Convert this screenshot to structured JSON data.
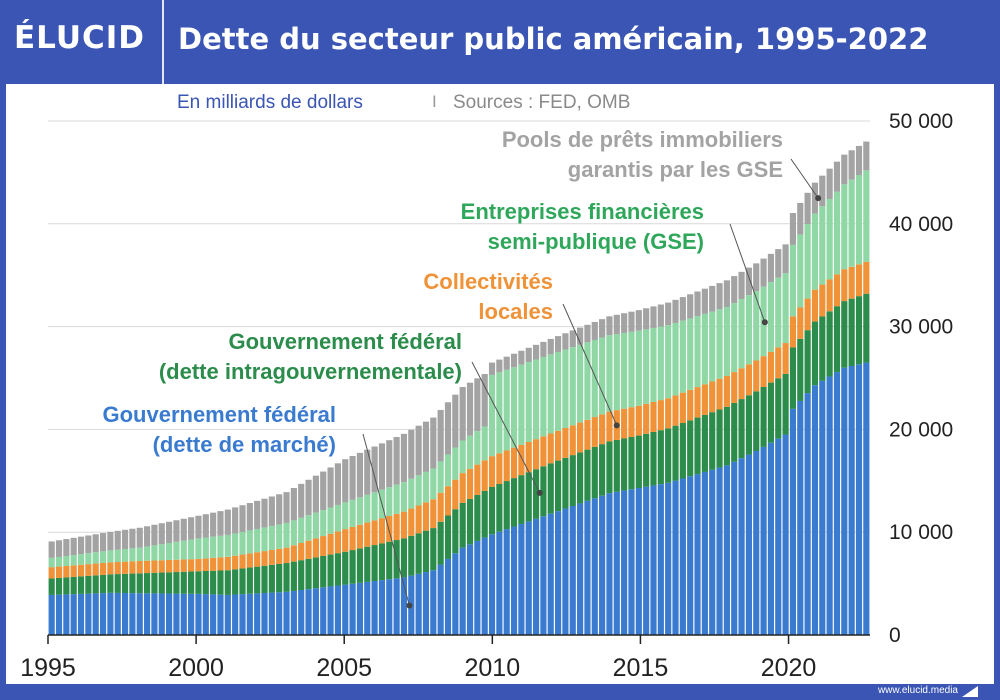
{
  "brand": {
    "logo": "ÉLUCID",
    "site": "www.elucid.media"
  },
  "header": {
    "title": "Dette du secteur public américain, 1995-2022"
  },
  "subtitle": {
    "units": "En milliards de dollars",
    "separator": "I",
    "sources": "Sources : FED, OMB"
  },
  "colors": {
    "market": "#3a7bd0",
    "intragov": "#2b8c4b",
    "local": "#ef9238",
    "gse": "#8fd8a6",
    "pools": "#a3a3a3",
    "brand": "#3a55b4"
  },
  "chart_data": {
    "type": "bar",
    "stacked": true,
    "x_start_year": 1995,
    "x_end_year": 2022.75,
    "x_tick_labels": [
      "1995",
      "2000",
      "2005",
      "2010",
      "2015",
      "2020"
    ],
    "ylim": [
      0,
      50000
    ],
    "y_tick_labels": [
      "0",
      "10 000",
      "20 000",
      "30 000",
      "40 000",
      "50 000"
    ],
    "series_keys": [
      "market",
      "intragov",
      "local",
      "gse",
      "pools"
    ],
    "series_names": [
      "Gouvernement fédéral (dette de marché)",
      "Gouvernement fédéral (dette intragouvernementale)",
      "Collectivités locales",
      "Entreprises financières semi-publique (GSE)",
      "Pools de prêts immobiliers garantis par les GSE"
    ],
    "keypoints": {
      "market": [
        [
          1995,
          3900
        ],
        [
          1997,
          4100
        ],
        [
          2000,
          4000
        ],
        [
          2001,
          3900
        ],
        [
          2003,
          4200
        ],
        [
          2005,
          4900
        ],
        [
          2007,
          5600
        ],
        [
          2008,
          6300
        ],
        [
          2009,
          8500
        ],
        [
          2010,
          9800
        ],
        [
          2012,
          11800
        ],
        [
          2014,
          13800
        ],
        [
          2016,
          14800
        ],
        [
          2018,
          16500
        ],
        [
          2019,
          17900
        ],
        [
          2020,
          19500
        ],
        [
          2020.25,
          22000
        ],
        [
          2021,
          24300
        ],
        [
          2022,
          26000
        ],
        [
          2022.75,
          26500
        ]
      ],
      "intragov": [
        [
          1995,
          1600
        ],
        [
          1997,
          1800
        ],
        [
          2000,
          2200
        ],
        [
          2002,
          2600
        ],
        [
          2005,
          3200
        ],
        [
          2008,
          4100
        ],
        [
          2010,
          4600
        ],
        [
          2012,
          4900
        ],
        [
          2015,
          5100
        ],
        [
          2018,
          5700
        ],
        [
          2020,
          5900
        ],
        [
          2022.75,
          6700
        ]
      ],
      "local": [
        [
          1995,
          1100
        ],
        [
          1998,
          1200
        ],
        [
          2000,
          1200
        ],
        [
          2003,
          1500
        ],
        [
          2005,
          2200
        ],
        [
          2008,
          2800
        ],
        [
          2010,
          3000
        ],
        [
          2012,
          2900
        ],
        [
          2015,
          2900
        ],
        [
          2018,
          3000
        ],
        [
          2020,
          3000
        ],
        [
          2021,
          3100
        ],
        [
          2022.75,
          3100
        ]
      ],
      "gse": [
        [
          1995,
          900
        ],
        [
          1998,
          1300
        ],
        [
          2000,
          2000
        ],
        [
          2003,
          2400
        ],
        [
          2005,
          2600
        ],
        [
          2008,
          3000
        ],
        [
          2009.75,
          3300
        ],
        [
          2010,
          7900
        ],
        [
          2012,
          7700
        ],
        [
          2015,
          7300
        ],
        [
          2018,
          6700
        ],
        [
          2020,
          6800
        ],
        [
          2021,
          7400
        ],
        [
          2022.75,
          8900
        ]
      ],
      "pools": [
        [
          1995,
          1600
        ],
        [
          1997,
          1800
        ],
        [
          2000,
          2200
        ],
        [
          2003,
          3000
        ],
        [
          2005,
          4200
        ],
        [
          2007,
          4700
        ],
        [
          2009,
          5200
        ],
        [
          2009.75,
          5100
        ],
        [
          2010,
          1200
        ],
        [
          2012,
          1500
        ],
        [
          2015,
          2000
        ],
        [
          2018,
          2600
        ],
        [
          2020,
          2800
        ],
        [
          2020.25,
          3100
        ],
        [
          2022.75,
          2800
        ]
      ]
    },
    "annotations": [
      {
        "key": "market",
        "lines": [
          "Gouvernement fédéral",
          "(dette de marché)"
        ]
      },
      {
        "key": "intragov",
        "lines": [
          "Gouvernement fédéral",
          "(dette intragouvernementale)"
        ]
      },
      {
        "key": "local",
        "lines": [
          "Collectivités",
          "locales"
        ]
      },
      {
        "key": "gse",
        "lines": [
          "Entreprises financières",
          "semi-publique (GSE)"
        ]
      },
      {
        "key": "pools",
        "lines": [
          "Pools de prêts immobiliers",
          "garantis par les GSE"
        ]
      }
    ]
  }
}
